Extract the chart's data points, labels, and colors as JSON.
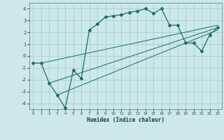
{
  "xlabel": "Humidex (Indice chaleur)",
  "background_color": "#cce8e8",
  "grid_color": "#aacfcf",
  "line_color": "#1a6b6b",
  "xlim": [
    -0.5,
    23.5
  ],
  "ylim": [
    -4.5,
    4.5
  ],
  "xticks": [
    0,
    1,
    2,
    3,
    4,
    5,
    6,
    7,
    8,
    9,
    10,
    11,
    12,
    13,
    14,
    15,
    16,
    17,
    18,
    19,
    20,
    21,
    22,
    23
  ],
  "yticks": [
    -4,
    -3,
    -2,
    -1,
    0,
    1,
    2,
    3,
    4
  ],
  "curve1_x": [
    0,
    1,
    2,
    3,
    4,
    5,
    6,
    7,
    8,
    9,
    10,
    11,
    12,
    13,
    14,
    15,
    16,
    17,
    18,
    19,
    20,
    21,
    22,
    23
  ],
  "curve1_y": [
    -0.6,
    -0.6,
    -2.3,
    -3.3,
    -4.4,
    -1.2,
    -1.9,
    2.2,
    2.7,
    3.3,
    3.4,
    3.5,
    3.7,
    3.8,
    4.0,
    3.6,
    4.0,
    2.6,
    2.6,
    1.1,
    1.1,
    0.4,
    1.8,
    2.4
  ],
  "line1_x": [
    1,
    23
  ],
  "line1_y": [
    -0.6,
    2.6
  ],
  "line2_x": [
    2,
    23
  ],
  "line2_y": [
    -2.3,
    2.4
  ],
  "line3_x": [
    3,
    23
  ],
  "line3_y": [
    -3.3,
    2.2
  ]
}
